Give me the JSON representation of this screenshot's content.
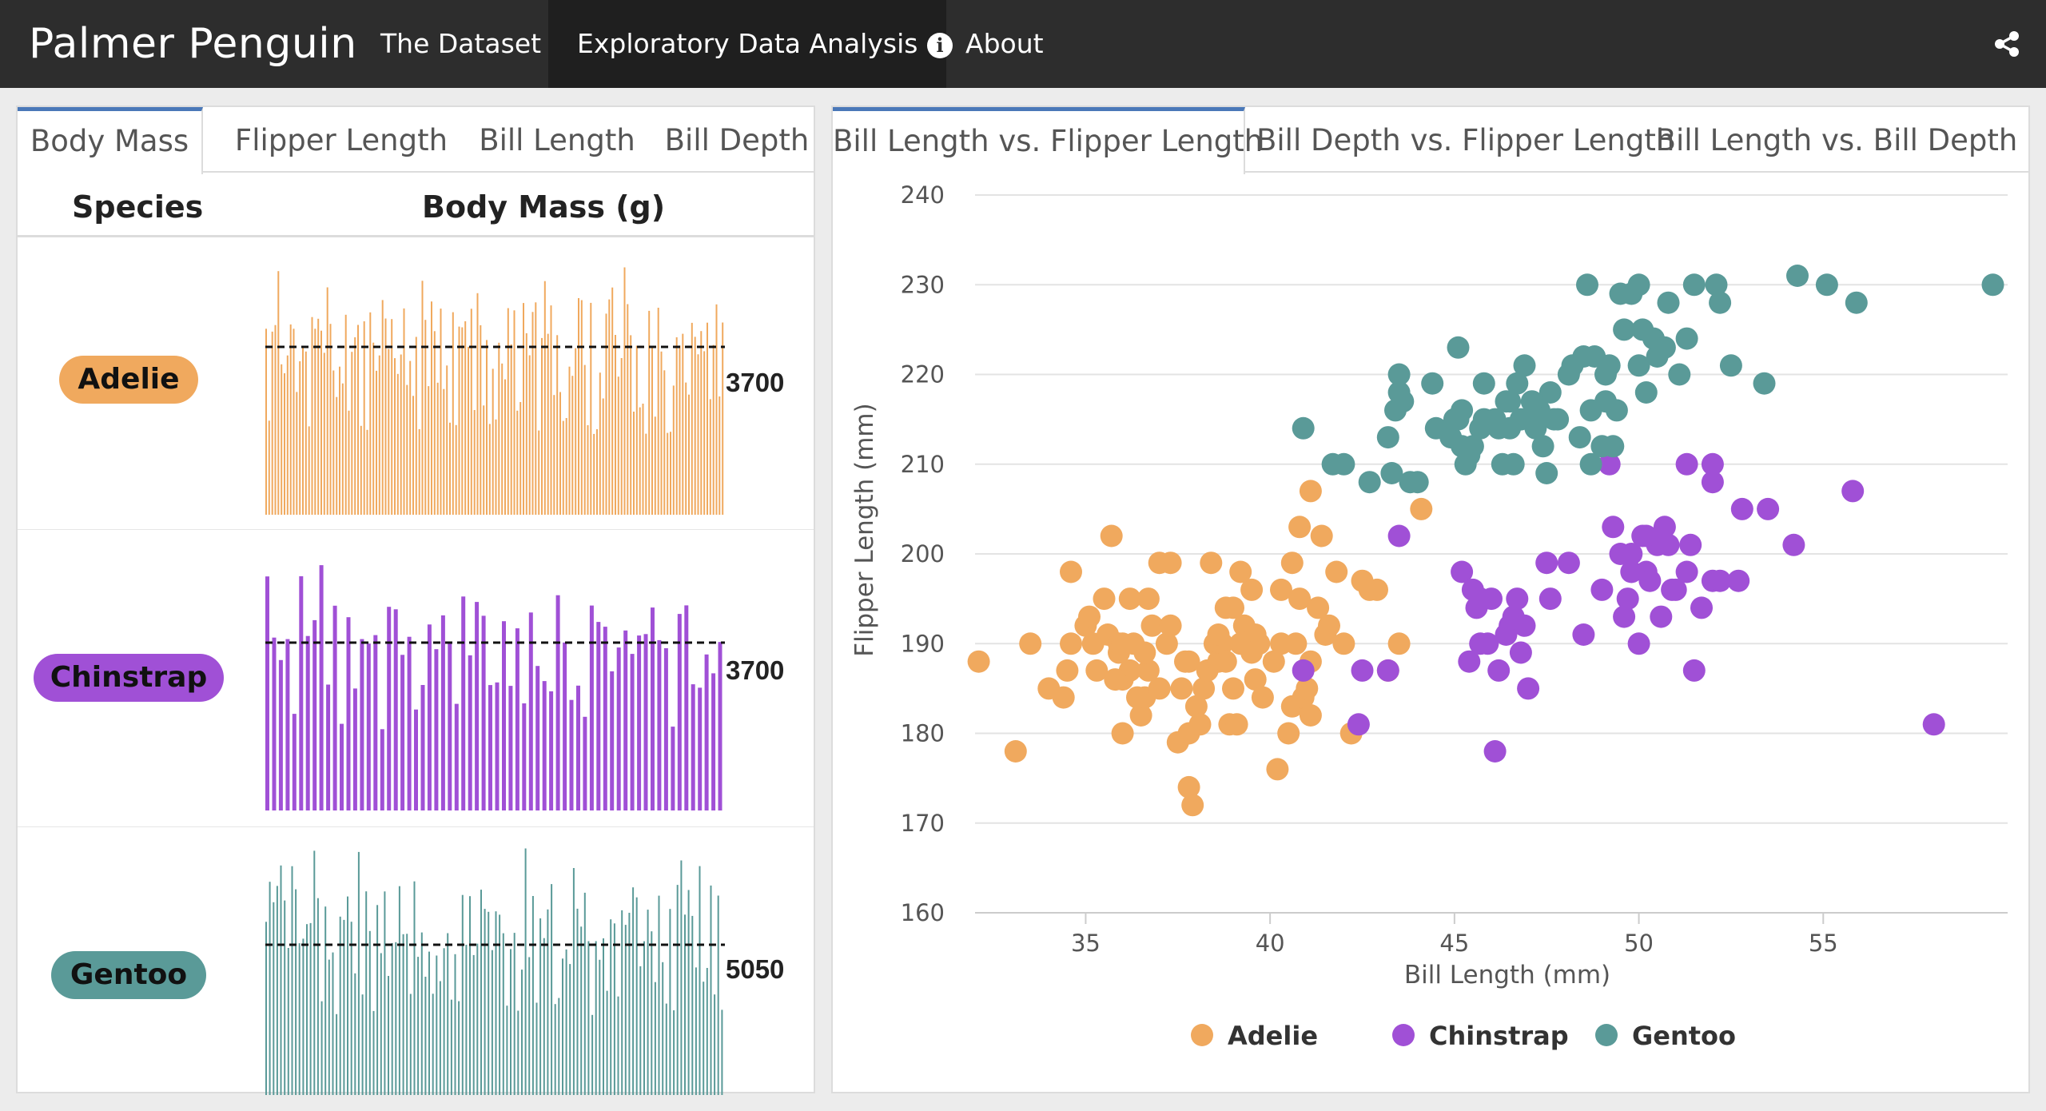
{
  "navbar": {
    "brand": "Palmer Penguin",
    "items": [
      {
        "label": "The Dataset"
      },
      {
        "label": "Exploratory Data Analysis"
      },
      {
        "label": "About"
      }
    ],
    "icons": {
      "about": "info-circle-icon",
      "share": "share-icon"
    }
  },
  "left_panel": {
    "tabs": [
      "Body Mass",
      "Flipper Length",
      "Bill Length",
      "Bill Depth"
    ],
    "active_tab": "Body Mass",
    "columns": {
      "species": "Species",
      "metric": "Body Mass (g)"
    },
    "rows": [
      {
        "species": "Adelie",
        "median": "3700",
        "color": "#f0a95e",
        "median_value": 3700
      },
      {
        "species": "Chinstrap",
        "median": "3700",
        "color": "#a050d6",
        "median_value": 3700
      },
      {
        "species": "Gentoo",
        "median": "5050",
        "color": "#5a9a98",
        "median_value": 5050
      }
    ]
  },
  "right_panel": {
    "tabs": [
      "Bill Length vs. Flipper Length",
      "Bill Depth vs. Flipper Length",
      "Bill Length vs. Bill Depth"
    ],
    "active_tab": "Bill Length vs. Flipper Length"
  },
  "chart_data": {
    "type": "scatter",
    "xlabel": "Bill Length (mm)",
    "ylabel": "Flipper Length (mm)",
    "xlim": [
      32,
      60
    ],
    "ylim": [
      160,
      240
    ],
    "xticks": [
      "35",
      "40",
      "45",
      "50",
      "55"
    ],
    "yticks": [
      "160",
      "170",
      "180",
      "190",
      "200",
      "210",
      "220",
      "230",
      "240"
    ],
    "grid": true,
    "legend_position": "bottom",
    "series": [
      {
        "name": "Adelie",
        "color": "#f0a95e",
        "points": [
          [
            32.1,
            188
          ],
          [
            33.1,
            178
          ],
          [
            33.5,
            190
          ],
          [
            34.0,
            185
          ],
          [
            34.4,
            184
          ],
          [
            34.5,
            187
          ],
          [
            34.6,
            190
          ],
          [
            34.6,
            198
          ],
          [
            35.0,
            192
          ],
          [
            35.1,
            193
          ],
          [
            35.2,
            190
          ],
          [
            35.3,
            187
          ],
          [
            35.5,
            195
          ],
          [
            35.6,
            191
          ],
          [
            35.7,
            202
          ],
          [
            35.9,
            189
          ],
          [
            35.9,
            190
          ],
          [
            36.0,
            180
          ],
          [
            36.0,
            186
          ],
          [
            36.0,
            190
          ],
          [
            36.2,
            187
          ],
          [
            36.2,
            195
          ],
          [
            36.3,
            190
          ],
          [
            36.4,
            184
          ],
          [
            36.5,
            182
          ],
          [
            36.6,
            184
          ],
          [
            36.7,
            187
          ],
          [
            36.8,
            192
          ],
          [
            37.0,
            185
          ],
          [
            37.2,
            190
          ],
          [
            37.3,
            192
          ],
          [
            37.3,
            199
          ],
          [
            37.5,
            179
          ],
          [
            37.6,
            185
          ],
          [
            37.7,
            188
          ],
          [
            37.8,
            174
          ],
          [
            37.8,
            180
          ],
          [
            37.9,
            172
          ],
          [
            38.0,
            183
          ],
          [
            38.1,
            181
          ],
          [
            38.2,
            185
          ],
          [
            38.3,
            187
          ],
          [
            38.5,
            190
          ],
          [
            38.6,
            188
          ],
          [
            38.7,
            190
          ],
          [
            38.8,
            194
          ],
          [
            38.9,
            181
          ],
          [
            39.0,
            185
          ],
          [
            39.1,
            181
          ],
          [
            39.2,
            190
          ],
          [
            39.3,
            192
          ],
          [
            39.5,
            196
          ],
          [
            39.6,
            186
          ],
          [
            39.7,
            190
          ],
          [
            39.8,
            184
          ],
          [
            40.1,
            188
          ],
          [
            40.2,
            176
          ],
          [
            40.3,
            190
          ],
          [
            40.5,
            180
          ],
          [
            40.6,
            183
          ],
          [
            40.7,
            190
          ],
          [
            40.8,
            195
          ],
          [
            40.9,
            184
          ],
          [
            41.1,
            182
          ],
          [
            41.1,
            188
          ],
          [
            41.3,
            194
          ],
          [
            41.4,
            202
          ],
          [
            41.5,
            191
          ],
          [
            41.6,
            192
          ],
          [
            41.8,
            198
          ],
          [
            42.0,
            190
          ],
          [
            42.2,
            180
          ],
          [
            42.5,
            197
          ],
          [
            42.7,
            196
          ],
          [
            42.9,
            196
          ],
          [
            43.2,
            187
          ],
          [
            43.5,
            190
          ],
          [
            44.1,
            205
          ],
          [
            39.6,
            191
          ],
          [
            37.0,
            199
          ],
          [
            38.4,
            199
          ],
          [
            36.7,
            195
          ],
          [
            35.8,
            186
          ],
          [
            37.8,
            188
          ],
          [
            39.0,
            194
          ],
          [
            40.6,
            199
          ],
          [
            41.0,
            185
          ],
          [
            40.3,
            196
          ],
          [
            38.8,
            188
          ],
          [
            39.2,
            198
          ],
          [
            36.6,
            189
          ],
          [
            39.5,
            189
          ],
          [
            38.6,
            191
          ],
          [
            41.1,
            207
          ],
          [
            40.8,
            203
          ]
        ]
      },
      {
        "name": "Chinstrap",
        "color": "#a050d6",
        "points": [
          [
            40.9,
            187
          ],
          [
            42.4,
            181
          ],
          [
            42.5,
            187
          ],
          [
            43.2,
            187
          ],
          [
            43.5,
            202
          ],
          [
            45.2,
            198
          ],
          [
            45.4,
            188
          ],
          [
            45.5,
            196
          ],
          [
            45.6,
            194
          ],
          [
            45.7,
            195
          ],
          [
            45.9,
            190
          ],
          [
            46.0,
            195
          ],
          [
            46.1,
            178
          ],
          [
            46.2,
            187
          ],
          [
            46.4,
            191
          ],
          [
            46.5,
            192
          ],
          [
            46.6,
            193
          ],
          [
            46.8,
            189
          ],
          [
            46.9,
            192
          ],
          [
            47.0,
            185
          ],
          [
            47.5,
            199
          ],
          [
            47.6,
            195
          ],
          [
            48.1,
            199
          ],
          [
            48.5,
            191
          ],
          [
            49.0,
            196
          ],
          [
            49.2,
            210
          ],
          [
            49.3,
            203
          ],
          [
            49.5,
            200
          ],
          [
            49.6,
            193
          ],
          [
            49.7,
            195
          ],
          [
            49.8,
            198
          ],
          [
            50.0,
            190
          ],
          [
            50.1,
            202
          ],
          [
            50.2,
            198
          ],
          [
            50.3,
            197
          ],
          [
            50.5,
            201
          ],
          [
            50.6,
            193
          ],
          [
            50.7,
            203
          ],
          [
            50.8,
            201
          ],
          [
            51.0,
            196
          ],
          [
            51.3,
            198
          ],
          [
            51.4,
            201
          ],
          [
            51.5,
            187
          ],
          [
            51.7,
            194
          ],
          [
            52.0,
            197
          ],
          [
            52.2,
            197
          ],
          [
            52.7,
            197
          ],
          [
            52.8,
            205
          ],
          [
            53.5,
            205
          ],
          [
            54.2,
            201
          ],
          [
            55.8,
            207
          ],
          [
            58.0,
            181
          ],
          [
            51.3,
            210
          ],
          [
            52.0,
            210
          ],
          [
            52.0,
            208
          ],
          [
            49.8,
            200
          ],
          [
            50.9,
            196
          ],
          [
            46.7,
            195
          ],
          [
            45.7,
            190
          ],
          [
            50.2,
            202
          ]
        ]
      },
      {
        "name": "Gentoo",
        "color": "#5a9a98",
        "points": [
          [
            40.9,
            214
          ],
          [
            41.7,
            210
          ],
          [
            42.0,
            210
          ],
          [
            42.7,
            208
          ],
          [
            43.2,
            213
          ],
          [
            43.3,
            209
          ],
          [
            43.4,
            216
          ],
          [
            43.5,
            218
          ],
          [
            43.5,
            220
          ],
          [
            43.6,
            217
          ],
          [
            43.8,
            208
          ],
          [
            44.0,
            208
          ],
          [
            44.4,
            219
          ],
          [
            44.5,
            214
          ],
          [
            44.9,
            213
          ],
          [
            45.0,
            215
          ],
          [
            45.1,
            215
          ],
          [
            45.1,
            223
          ],
          [
            45.2,
            212
          ],
          [
            45.3,
            210
          ],
          [
            45.4,
            211
          ],
          [
            45.5,
            212
          ],
          [
            45.7,
            214
          ],
          [
            45.8,
            215
          ],
          [
            46.1,
            215
          ],
          [
            46.2,
            214
          ],
          [
            46.3,
            210
          ],
          [
            46.4,
            217
          ],
          [
            46.5,
            214
          ],
          [
            46.6,
            210
          ],
          [
            46.7,
            219
          ],
          [
            46.8,
            215
          ],
          [
            46.9,
            221
          ],
          [
            47.2,
            214
          ],
          [
            47.3,
            216
          ],
          [
            47.4,
            212
          ],
          [
            47.5,
            209
          ],
          [
            47.6,
            218
          ],
          [
            47.8,
            215
          ],
          [
            48.1,
            220
          ],
          [
            48.2,
            221
          ],
          [
            48.4,
            213
          ],
          [
            48.5,
            222
          ],
          [
            48.6,
            230
          ],
          [
            48.7,
            210
          ],
          [
            48.8,
            222
          ],
          [
            49.0,
            212
          ],
          [
            49.1,
            217
          ],
          [
            49.2,
            221
          ],
          [
            49.4,
            216
          ],
          [
            49.5,
            229
          ],
          [
            49.6,
            225
          ],
          [
            49.8,
            229
          ],
          [
            50.0,
            230
          ],
          [
            50.1,
            225
          ],
          [
            50.2,
            218
          ],
          [
            50.4,
            224
          ],
          [
            50.5,
            222
          ],
          [
            50.7,
            223
          ],
          [
            50.8,
            228
          ],
          [
            51.1,
            220
          ],
          [
            51.3,
            224
          ],
          [
            51.5,
            230
          ],
          [
            52.1,
            230
          ],
          [
            52.2,
            228
          ],
          [
            52.5,
            221
          ],
          [
            53.4,
            219
          ],
          [
            54.3,
            231
          ],
          [
            55.1,
            230
          ],
          [
            55.9,
            228
          ],
          [
            59.6,
            230
          ],
          [
            45.2,
            216
          ],
          [
            46.5,
            217
          ],
          [
            47.7,
            215
          ],
          [
            49.1,
            220
          ],
          [
            48.7,
            216
          ],
          [
            49.3,
            212
          ],
          [
            45.8,
            219
          ],
          [
            47.1,
            217
          ],
          [
            50.0,
            221
          ]
        ]
      }
    ]
  }
}
